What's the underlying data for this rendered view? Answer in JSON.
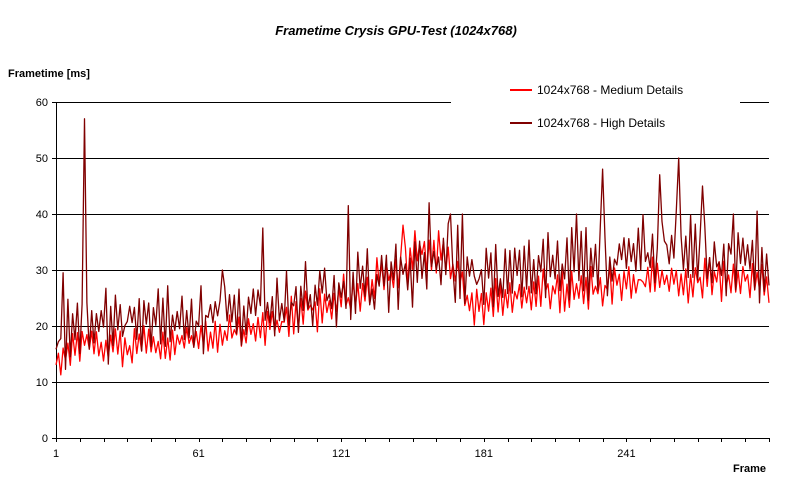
{
  "chart_data": {
    "type": "line",
    "title": "Frametime Crysis GPU-Test (1024x768)",
    "ylabel": "Frametime [ms]",
    "xlabel": "Frame",
    "ylim": [
      0,
      60
    ],
    "yticks": [
      "0",
      "10",
      "20",
      "30",
      "40",
      "50",
      "60"
    ],
    "xlim": [
      1,
      301
    ],
    "xticks": [
      {
        "value": 1,
        "label": "1"
      },
      {
        "value": 61,
        "label": "61"
      },
      {
        "value": 121,
        "label": "121"
      },
      {
        "value": 181,
        "label": "181"
      },
      {
        "value": 241,
        "label": "241"
      }
    ],
    "grid": true,
    "legend_position": "top-right",
    "series": [
      {
        "name": "1024x768 - Medium Details",
        "color": "#ff0000",
        "x": [
          1,
          8,
          16,
          24,
          32,
          40,
          48,
          56,
          64,
          72,
          80,
          88,
          96,
          104,
          112,
          120,
          128,
          136,
          144,
          152,
          160,
          168,
          176,
          184,
          192,
          200,
          208,
          216,
          224,
          232,
          240,
          248,
          256,
          264,
          272,
          280,
          288,
          296,
          301
        ],
        "values": [
          13.5,
          16,
          17,
          17,
          16.5,
          17,
          17.5,
          17.5,
          18,
          19,
          19,
          20,
          21,
          22,
          23,
          25,
          26,
          28,
          30,
          32,
          33,
          31,
          23,
          24,
          25,
          25.5,
          26,
          26.5,
          27,
          27.5,
          28,
          28,
          28.5,
          28,
          28,
          28,
          28,
          28,
          28.5
        ],
        "peaks": [
          {
            "x": 147,
            "value": 38
          },
          {
            "x": 152,
            "value": 37
          },
          {
            "x": 162,
            "value": 37
          }
        ]
      },
      {
        "name": "1024x768 - High Details",
        "color": "#800000",
        "x": [
          1,
          8,
          16,
          24,
          32,
          40,
          48,
          56,
          64,
          72,
          80,
          88,
          96,
          104,
          112,
          120,
          128,
          136,
          144,
          152,
          160,
          168,
          176,
          184,
          192,
          200,
          208,
          216,
          224,
          232,
          240,
          248,
          256,
          264,
          272,
          280,
          288,
          296,
          301
        ],
        "values": [
          18,
          19,
          20,
          20.5,
          21,
          21,
          21.5,
          21.5,
          22,
          22.5,
          22.5,
          23,
          23.5,
          24,
          25,
          25,
          27,
          28,
          30,
          31,
          32,
          31,
          28,
          29,
          29,
          30,
          30,
          30.5,
          31,
          31.5,
          32,
          33,
          34,
          34,
          33,
          32,
          32,
          31.5,
          31
        ],
        "peaks": [
          {
            "x": 4,
            "value": 29.5
          },
          {
            "x": 13,
            "value": 57
          },
          {
            "x": 71,
            "value": 30
          },
          {
            "x": 88,
            "value": 37.5
          },
          {
            "x": 124,
            "value": 41.5
          },
          {
            "x": 158,
            "value": 42
          },
          {
            "x": 167,
            "value": 40
          },
          {
            "x": 172,
            "value": 40
          },
          {
            "x": 220,
            "value": 40
          },
          {
            "x": 231,
            "value": 48
          },
          {
            "x": 255,
            "value": 47
          },
          {
            "x": 263,
            "value": 50
          },
          {
            "x": 273,
            "value": 45
          },
          {
            "x": 286,
            "value": 40
          },
          {
            "x": 296,
            "value": 40.5
          }
        ]
      }
    ]
  }
}
